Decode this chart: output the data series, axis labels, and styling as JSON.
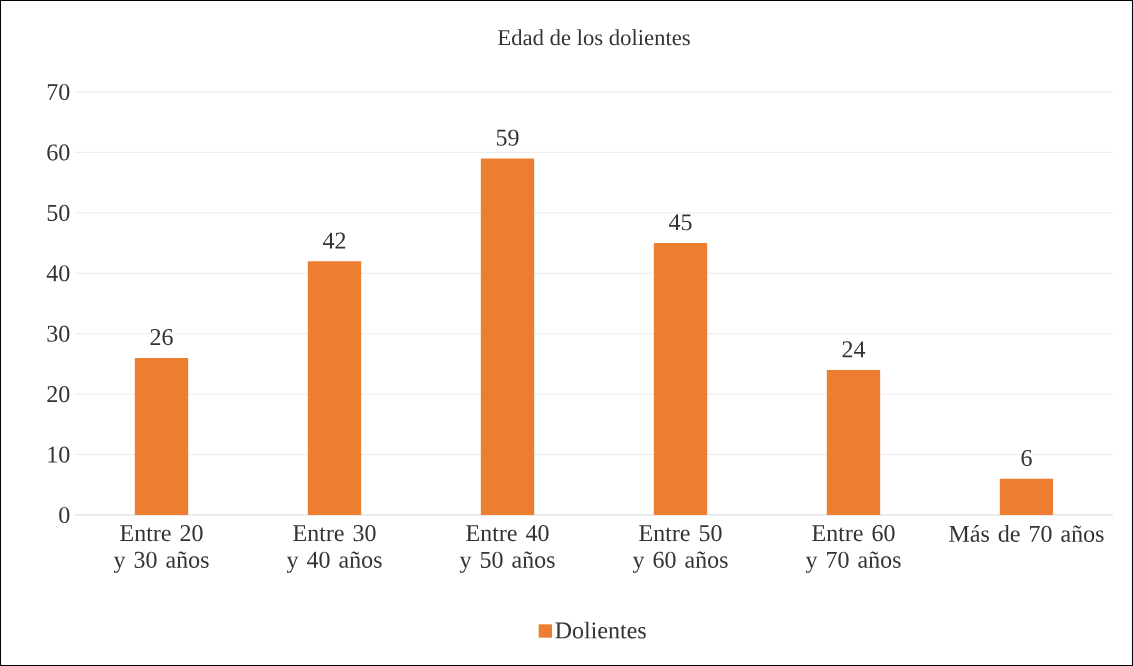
{
  "chart_data": {
    "type": "bar",
    "title": "Edad de los dolientes",
    "categories": [
      "Entre 20 y 30 años",
      "Entre 30 y 40 años",
      "Entre 40 y 50 años",
      "Entre 50 y 60 años",
      "Entre 60 y 70 años",
      "Más de 70 años"
    ],
    "series": [
      {
        "name": "Dolientes",
        "color": "#ed7d31",
        "values": [
          26,
          42,
          59,
          45,
          24,
          6
        ]
      }
    ],
    "ylim": [
      0,
      70
    ],
    "yticks": [
      0,
      10,
      20,
      30,
      40,
      50,
      60,
      70
    ],
    "grid": "y",
    "legend": "bottom",
    "data_labels": true
  }
}
